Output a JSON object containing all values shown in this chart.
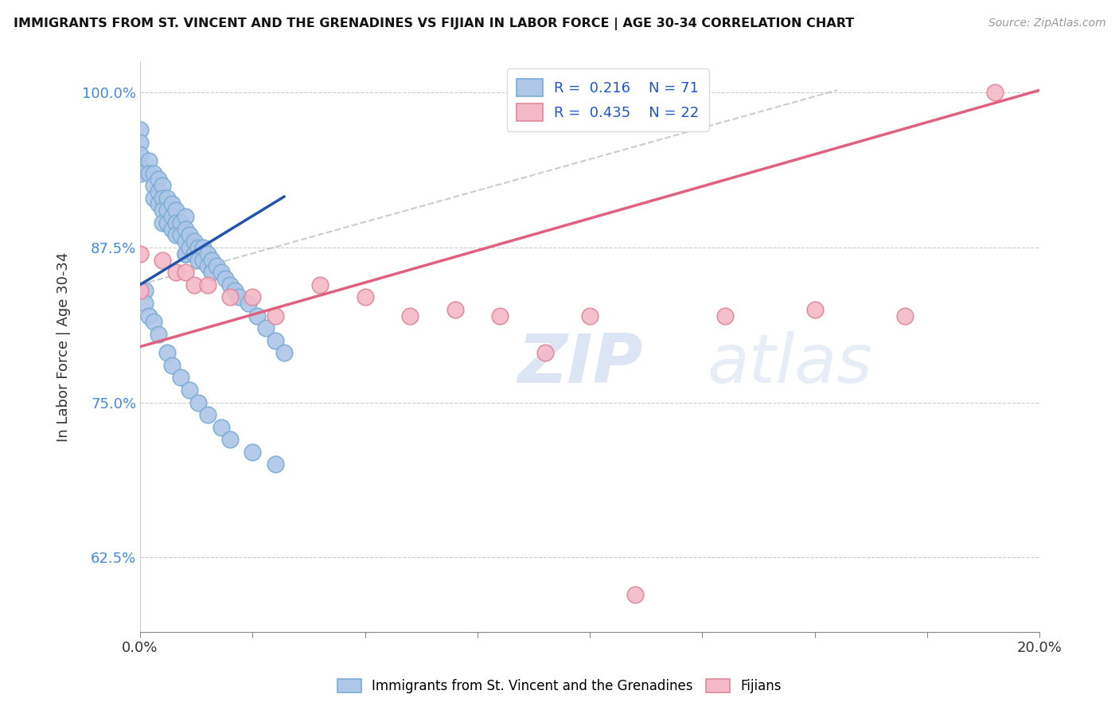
{
  "title": "IMMIGRANTS FROM ST. VINCENT AND THE GRENADINES VS FIJIAN IN LABOR FORCE | AGE 30-34 CORRELATION CHART",
  "source": "Source: ZipAtlas.com",
  "ylabel": "In Labor Force | Age 30-34",
  "xlim": [
    0.0,
    0.2
  ],
  "ylim": [
    0.565,
    1.025
  ],
  "yticks": [
    0.625,
    0.75,
    0.875,
    1.0
  ],
  "ytick_labels": [
    "62.5%",
    "75.0%",
    "87.5%",
    "100.0%"
  ],
  "xtick_labels": [
    "0.0%",
    "20.0%"
  ],
  "legend_R1": "0.216",
  "legend_N1": "71",
  "legend_R2": "0.435",
  "legend_N2": "22",
  "blue_color": "#aec6e8",
  "blue_edge": "#7aadd4",
  "blue_line_color": "#2255aa",
  "pink_color": "#f4b8c8",
  "pink_edge": "#e08898",
  "pink_line_color": "#e06080",
  "dashed_color": "#aaaaaa",
  "watermark_color": "#d0dff0",
  "background_color": "#ffffff",
  "blue_line_x": [
    0.0,
    0.032
  ],
  "blue_line_y": [
    0.845,
    0.916
  ],
  "pink_line_x": [
    0.0,
    0.2
  ],
  "pink_line_y": [
    0.795,
    1.002
  ],
  "dashed_line_x": [
    0.0,
    0.155
  ],
  "dashed_line_y": [
    0.845,
    1.002
  ],
  "blue_x": [
    0.0,
    0.0,
    0.0,
    0.0,
    0.0,
    0.002,
    0.002,
    0.003,
    0.003,
    0.003,
    0.004,
    0.004,
    0.004,
    0.005,
    0.005,
    0.005,
    0.005,
    0.006,
    0.006,
    0.006,
    0.007,
    0.007,
    0.007,
    0.008,
    0.008,
    0.008,
    0.009,
    0.009,
    0.01,
    0.01,
    0.01,
    0.01,
    0.01,
    0.011,
    0.011,
    0.012,
    0.012,
    0.013,
    0.013,
    0.014,
    0.014,
    0.015,
    0.015,
    0.016,
    0.016,
    0.017,
    0.018,
    0.019,
    0.02,
    0.021,
    0.022,
    0.024,
    0.026,
    0.028,
    0.03,
    0.032,
    0.001,
    0.001,
    0.002,
    0.003,
    0.004,
    0.006,
    0.007,
    0.009,
    0.011,
    0.013,
    0.015,
    0.018,
    0.02,
    0.025,
    0.03
  ],
  "blue_y": [
    0.97,
    0.96,
    0.95,
    0.94,
    0.935,
    0.945,
    0.935,
    0.935,
    0.925,
    0.915,
    0.93,
    0.92,
    0.91,
    0.925,
    0.915,
    0.905,
    0.895,
    0.915,
    0.905,
    0.895,
    0.91,
    0.9,
    0.89,
    0.905,
    0.895,
    0.885,
    0.895,
    0.885,
    0.9,
    0.89,
    0.88,
    0.87,
    0.87,
    0.885,
    0.875,
    0.88,
    0.87,
    0.875,
    0.865,
    0.875,
    0.865,
    0.87,
    0.86,
    0.865,
    0.855,
    0.86,
    0.855,
    0.85,
    0.845,
    0.84,
    0.835,
    0.83,
    0.82,
    0.81,
    0.8,
    0.79,
    0.84,
    0.83,
    0.82,
    0.815,
    0.805,
    0.79,
    0.78,
    0.77,
    0.76,
    0.75,
    0.74,
    0.73,
    0.72,
    0.71,
    0.7
  ],
  "pink_x": [
    0.0,
    0.0,
    0.005,
    0.008,
    0.01,
    0.012,
    0.015,
    0.02,
    0.025,
    0.03,
    0.04,
    0.05,
    0.06,
    0.07,
    0.08,
    0.09,
    0.1,
    0.11,
    0.13,
    0.15,
    0.17,
    0.19
  ],
  "pink_y": [
    0.87,
    0.84,
    0.865,
    0.855,
    0.855,
    0.845,
    0.845,
    0.835,
    0.835,
    0.82,
    0.845,
    0.835,
    0.82,
    0.825,
    0.82,
    0.79,
    0.82,
    0.595,
    0.82,
    0.825,
    0.82,
    1.0
  ]
}
